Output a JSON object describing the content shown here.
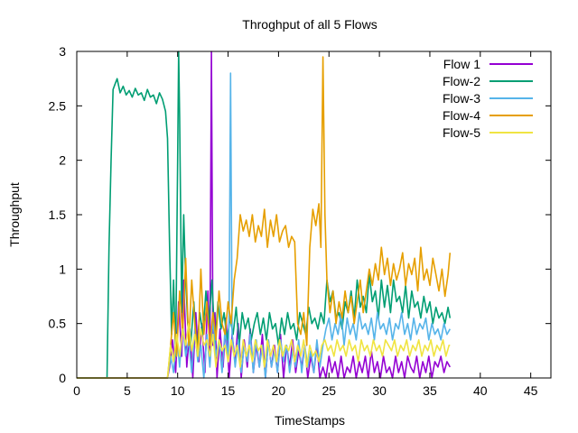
{
  "chart_data": {
    "type": "line",
    "title": "Throghput of all 5 Flows",
    "xlabel": "TimeStamps",
    "ylabel": "Throughput",
    "xlim": [
      0,
      47
    ],
    "ylim": [
      0,
      3
    ],
    "xticks": [
      0,
      5,
      10,
      15,
      20,
      25,
      30,
      35,
      40,
      45
    ],
    "xtick_labels": [
      "0",
      "5",
      "10",
      "15",
      "20",
      "25",
      "30",
      "35",
      "40",
      "45"
    ],
    "yticks": [
      0,
      0.5,
      1,
      1.5,
      2,
      2.5,
      3
    ],
    "ytick_labels": [
      "0",
      "0.5",
      "1",
      "1.5",
      "2",
      "2.5",
      "3"
    ],
    "grid": false,
    "legend_position": "top-right",
    "series": [
      {
        "name": "Flow 1",
        "color": "#9400d3",
        "x": [
          0,
          9.0,
          9.2,
          9.5,
          9.8,
          10.1,
          10.4,
          10.6,
          10.9,
          11.2,
          11.5,
          11.8,
          12.1,
          12.4,
          12.7,
          13.0,
          13.2,
          13.35,
          13.5,
          13.7,
          13.9,
          14.2,
          14.5,
          14.8,
          15.1,
          15.4,
          15.7,
          16.0,
          16.3,
          16.6,
          16.9,
          17.2,
          17.5,
          17.8,
          18.1,
          18.4,
          18.7,
          19.0,
          19.3,
          19.6,
          19.9,
          20.2,
          20.5,
          20.8,
          21.1,
          21.4,
          21.7,
          22.0,
          22.3,
          22.6,
          22.9,
          23.2,
          23.5,
          23.8,
          24.1,
          24.4,
          24.7,
          25.0,
          25.3,
          25.6,
          25.9,
          26.2,
          26.5,
          26.8,
          27.1,
          27.4,
          27.7,
          28.0,
          28.3,
          28.6,
          28.9,
          29.2,
          29.5,
          29.8,
          30.1,
          30.4,
          30.7,
          31.0,
          31.3,
          31.6,
          31.9,
          32.2,
          32.5,
          32.8,
          33.1,
          33.4,
          33.7,
          34.0,
          34.3,
          34.6,
          34.9,
          35.2,
          35.5,
          35.8,
          36.1,
          36.4,
          36.7,
          37.0
        ],
        "y": [
          0,
          0,
          0.1,
          0.35,
          0.05,
          0.7,
          0.2,
          0.9,
          0.1,
          0.45,
          0.0,
          0.6,
          0.15,
          0.5,
          0.05,
          0.8,
          0.2,
          3.0,
          0.3,
          0.6,
          0.0,
          0.45,
          0.1,
          0.55,
          0.0,
          0.4,
          0.15,
          0.5,
          0.0,
          0.35,
          0.1,
          0.45,
          0.05,
          0.3,
          0.1,
          0.4,
          0.0,
          0.35,
          0.1,
          0.3,
          0.05,
          0.4,
          0.0,
          0.3,
          0.1,
          0.35,
          0.05,
          0.25,
          0.1,
          0.3,
          0.0,
          0.2,
          0.05,
          0.3,
          0.0,
          0.1,
          0.0,
          0.2,
          0.05,
          0.15,
          0.0,
          0.2,
          0.0,
          0.1,
          0.05,
          0.2,
          0.0,
          0.15,
          0.05,
          0.2,
          0.0,
          0.25,
          0.05,
          0.15,
          0.0,
          0.2,
          0.05,
          0.1,
          0.0,
          0.2,
          0.05,
          0.15,
          0.0,
          0.2,
          0.1,
          0.05,
          0.2,
          0.0,
          0.15,
          0.05,
          0.2,
          0.0,
          0.15,
          0.1,
          0.2,
          0.05,
          0.15,
          0.1
        ]
      },
      {
        "name": "Flow-2",
        "color": "#009e73",
        "x": [
          0,
          3.0,
          3.2,
          3.4,
          3.6,
          3.8,
          4.0,
          4.3,
          4.6,
          4.9,
          5.2,
          5.5,
          5.8,
          6.1,
          6.4,
          6.7,
          7.0,
          7.3,
          7.6,
          7.9,
          8.2,
          8.5,
          8.8,
          9.0,
          9.2,
          9.4,
          9.6,
          9.8,
          10.0,
          10.1,
          10.2,
          10.4,
          10.6,
          10.8,
          11.0,
          11.3,
          11.6,
          11.9,
          12.2,
          12.5,
          12.8,
          13.1,
          13.4,
          13.7,
          14.0,
          14.3,
          14.6,
          14.9,
          15.2,
          15.5,
          15.8,
          16.1,
          16.4,
          16.7,
          17.0,
          17.3,
          17.6,
          17.9,
          18.2,
          18.5,
          18.8,
          19.1,
          19.4,
          19.7,
          20.0,
          20.3,
          20.6,
          20.9,
          21.2,
          21.5,
          21.8,
          22.1,
          22.4,
          22.7,
          23.0,
          23.3,
          23.6,
          23.9,
          24.2,
          24.5,
          24.8,
          25.1,
          25.4,
          25.7,
          26.0,
          26.3,
          26.6,
          26.9,
          27.2,
          27.5,
          27.8,
          28.1,
          28.4,
          28.7,
          29.0,
          29.3,
          29.6,
          29.9,
          30.2,
          30.5,
          30.8,
          31.1,
          31.4,
          31.7,
          32.0,
          32.3,
          32.6,
          32.9,
          33.2,
          33.5,
          33.8,
          34.1,
          34.4,
          34.7,
          35.0,
          35.3,
          35.6,
          35.9,
          36.2,
          36.5,
          36.8,
          37.0
        ],
        "y": [
          0,
          0,
          1.2,
          2.0,
          2.65,
          2.7,
          2.75,
          2.62,
          2.68,
          2.6,
          2.64,
          2.58,
          2.66,
          2.6,
          2.62,
          2.55,
          2.65,
          2.58,
          2.6,
          2.52,
          2.62,
          2.56,
          2.45,
          2.2,
          1.2,
          0.4,
          0.9,
          0.2,
          2.0,
          3.0,
          2.4,
          0.6,
          1.5,
          0.9,
          0.5,
          0.3,
          0.7,
          0.25,
          0.6,
          0.4,
          0.8,
          0.5,
          0.9,
          0.3,
          0.7,
          0.45,
          0.6,
          0.35,
          0.55,
          0.4,
          0.65,
          0.3,
          0.6,
          0.45,
          0.55,
          0.35,
          0.5,
          0.6,
          0.4,
          0.55,
          0.35,
          0.6,
          0.45,
          0.5,
          0.3,
          0.55,
          0.4,
          0.6,
          0.45,
          0.5,
          0.35,
          0.6,
          0.5,
          0.4,
          0.65,
          0.5,
          0.55,
          0.45,
          0.6,
          0.5,
          0.9,
          0.7,
          0.8,
          0.55,
          0.6,
          0.45,
          0.7,
          0.6,
          0.8,
          0.55,
          0.9,
          0.65,
          0.75,
          0.6,
          0.95,
          0.7,
          0.8,
          0.55,
          0.9,
          0.65,
          0.85,
          0.6,
          0.9,
          0.7,
          0.75,
          0.6,
          0.85,
          0.55,
          0.8,
          0.65,
          0.7,
          0.55,
          0.75,
          0.6,
          0.7,
          0.5,
          0.65,
          0.55,
          0.6,
          0.5,
          0.65,
          0.55
        ]
      },
      {
        "name": "Flow-3",
        "color": "#56b4e9",
        "x": [
          0,
          9.0,
          9.3,
          9.6,
          9.9,
          10.2,
          10.5,
          10.8,
          11.1,
          11.4,
          11.7,
          12.0,
          12.3,
          12.6,
          12.9,
          13.2,
          13.5,
          13.8,
          14.1,
          14.4,
          14.7,
          15.0,
          15.1,
          15.25,
          15.4,
          15.7,
          16.0,
          16.3,
          16.6,
          16.9,
          17.2,
          17.5,
          17.8,
          18.1,
          18.4,
          18.7,
          19.0,
          19.3,
          19.6,
          19.9,
          20.2,
          20.5,
          20.8,
          21.1,
          21.4,
          21.7,
          22.0,
          22.3,
          22.6,
          22.9,
          23.2,
          23.5,
          23.8,
          24.1,
          24.4,
          24.7,
          25.0,
          25.3,
          25.6,
          25.9,
          26.2,
          26.5,
          26.8,
          27.1,
          27.4,
          27.7,
          28.0,
          28.3,
          28.6,
          28.9,
          29.2,
          29.5,
          29.8,
          30.1,
          30.4,
          30.7,
          31.0,
          31.3,
          31.6,
          31.9,
          32.2,
          32.5,
          32.8,
          33.1,
          33.4,
          33.7,
          34.0,
          34.3,
          34.6,
          34.9,
          35.2,
          35.5,
          35.8,
          36.1,
          36.4,
          36.7,
          37.0
        ],
        "y": [
          0,
          0,
          0.2,
          0.05,
          0.4,
          0.1,
          0.5,
          0.2,
          0.35,
          0.05,
          0.45,
          0.15,
          0.3,
          0.0,
          0.4,
          0.1,
          0.55,
          0.2,
          0.35,
          0.05,
          0.45,
          0.15,
          0.6,
          2.8,
          0.4,
          0.1,
          0.35,
          0.05,
          0.3,
          0.15,
          0.4,
          0.05,
          0.35,
          0.1,
          0.3,
          0.0,
          0.35,
          0.1,
          0.25,
          0.05,
          0.35,
          0.15,
          0.3,
          0.05,
          0.25,
          0.1,
          0.35,
          0.05,
          0.3,
          0.1,
          0.25,
          0.05,
          0.35,
          0.1,
          0.3,
          0.45,
          0.55,
          0.35,
          0.5,
          0.4,
          0.6,
          0.3,
          0.55,
          0.4,
          0.5,
          0.35,
          0.6,
          0.45,
          0.5,
          0.4,
          0.55,
          0.35,
          0.6,
          0.45,
          0.5,
          0.4,
          0.55,
          0.35,
          0.5,
          0.45,
          0.6,
          0.4,
          0.5,
          0.35,
          0.55,
          0.4,
          0.5,
          0.45,
          0.55,
          0.35,
          0.5,
          0.4,
          0.45,
          0.35,
          0.5,
          0.4,
          0.45
        ]
      },
      {
        "name": "Flow-4",
        "color": "#e69f00",
        "x": [
          0,
          9.0,
          9.3,
          9.6,
          9.9,
          10.2,
          10.5,
          10.8,
          11.1,
          11.4,
          11.7,
          12.0,
          12.3,
          12.6,
          12.9,
          13.2,
          13.5,
          13.8,
          14.1,
          14.4,
          14.7,
          15.0,
          15.3,
          15.6,
          15.9,
          16.2,
          16.5,
          16.8,
          17.1,
          17.4,
          17.7,
          18.0,
          18.3,
          18.6,
          18.9,
          19.2,
          19.5,
          19.8,
          20.1,
          20.4,
          20.7,
          21.0,
          21.3,
          21.6,
          21.9,
          22.2,
          22.5,
          22.8,
          23.1,
          23.4,
          23.7,
          24.0,
          24.2,
          24.4,
          24.6,
          24.8,
          25.1,
          25.4,
          25.7,
          26.0,
          26.3,
          26.6,
          26.9,
          27.2,
          27.5,
          27.8,
          28.1,
          28.4,
          28.7,
          29.0,
          29.3,
          29.6,
          29.9,
          30.2,
          30.5,
          30.8,
          31.1,
          31.4,
          31.7,
          32.0,
          32.3,
          32.6,
          32.9,
          33.2,
          33.5,
          33.8,
          34.1,
          34.4,
          34.7,
          35.0,
          35.3,
          35.6,
          35.9,
          36.2,
          36.5,
          36.8,
          37.0
        ],
        "y": [
          0,
          0,
          0.3,
          0.6,
          0.2,
          0.8,
          0.4,
          1.1,
          0.3,
          0.9,
          0.5,
          0.2,
          1.0,
          0.4,
          0.7,
          0.3,
          0.6,
          0.35,
          0.8,
          0.5,
          0.4,
          0.7,
          0.5,
          0.9,
          1.1,
          1.5,
          1.35,
          1.45,
          1.3,
          1.5,
          1.25,
          1.4,
          1.3,
          1.55,
          1.2,
          1.45,
          1.3,
          1.5,
          1.25,
          1.35,
          1.4,
          1.2,
          1.3,
          1.25,
          0.5,
          0.4,
          0.6,
          0.3,
          1.2,
          1.55,
          1.4,
          1.6,
          1.2,
          2.95,
          1.5,
          0.9,
          0.6,
          0.8,
          0.5,
          0.7,
          0.55,
          0.8,
          0.6,
          0.75,
          0.5,
          0.7,
          0.9,
          0.6,
          0.8,
          1.0,
          0.85,
          1.05,
          0.9,
          1.2,
          0.95,
          1.1,
          0.85,
          1.05,
          0.9,
          1.0,
          1.15,
          0.85,
          1.05,
          0.95,
          1.1,
          0.8,
          1.2,
          0.9,
          1.0,
          0.85,
          1.1,
          0.95,
          0.8,
          1.0,
          0.75,
          0.95,
          1.15
        ]
      },
      {
        "name": "Flow-5",
        "color": "#f0e442",
        "x": [
          0,
          9.0,
          9.3,
          9.6,
          9.9,
          10.2,
          10.5,
          10.8,
          11.1,
          11.4,
          11.7,
          12.0,
          12.3,
          12.6,
          12.9,
          13.2,
          13.5,
          13.8,
          14.1,
          14.4,
          14.7,
          15.0,
          15.3,
          15.6,
          15.9,
          16.2,
          16.5,
          16.8,
          17.1,
          17.4,
          17.7,
          18.0,
          18.3,
          18.6,
          18.9,
          19.2,
          19.5,
          19.8,
          20.1,
          20.4,
          20.7,
          21.0,
          21.3,
          21.6,
          21.9,
          22.2,
          22.5,
          22.8,
          23.1,
          23.4,
          23.7,
          24.0,
          24.3,
          24.6,
          24.9,
          25.2,
          25.5,
          25.8,
          26.1,
          26.4,
          26.7,
          27.0,
          27.3,
          27.6,
          27.9,
          28.2,
          28.5,
          28.8,
          29.1,
          29.4,
          29.7,
          30.0,
          30.3,
          30.6,
          30.9,
          31.2,
          31.5,
          31.8,
          32.1,
          32.4,
          32.7,
          33.0,
          33.3,
          33.6,
          33.9,
          34.2,
          34.5,
          34.8,
          35.1,
          35.4,
          35.7,
          36.0,
          36.3,
          36.6,
          36.9,
          37.0
        ],
        "y": [
          0,
          0,
          0.3,
          0.15,
          0.4,
          0.2,
          0.45,
          0.3,
          0.5,
          0.25,
          0.4,
          0.2,
          0.45,
          0.3,
          0.35,
          0.2,
          0.4,
          0.1,
          0.35,
          0.25,
          0.3,
          0.15,
          0.35,
          0.2,
          0.3,
          0.1,
          0.35,
          0.2,
          0.3,
          0.15,
          0.35,
          0.25,
          0.3,
          0.1,
          0.35,
          0.2,
          0.3,
          0.15,
          0.35,
          0.2,
          0.3,
          0.25,
          0.35,
          0.15,
          0.3,
          0.2,
          0.35,
          0.1,
          0.3,
          0.2,
          0.25,
          0.15,
          0.3,
          0.35,
          0.25,
          0.3,
          0.2,
          0.35,
          0.25,
          0.3,
          0.2,
          0.35,
          0.25,
          0.3,
          0.15,
          0.35,
          0.25,
          0.3,
          0.2,
          0.35,
          0.25,
          0.3,
          0.2,
          0.35,
          0.3,
          0.25,
          0.35,
          0.2,
          0.3,
          0.25,
          0.35,
          0.2,
          0.3,
          0.25,
          0.35,
          0.2,
          0.3,
          0.25,
          0.35,
          0.2,
          0.3,
          0.25,
          0.35,
          0.2,
          0.3,
          0.3
        ]
      }
    ]
  }
}
